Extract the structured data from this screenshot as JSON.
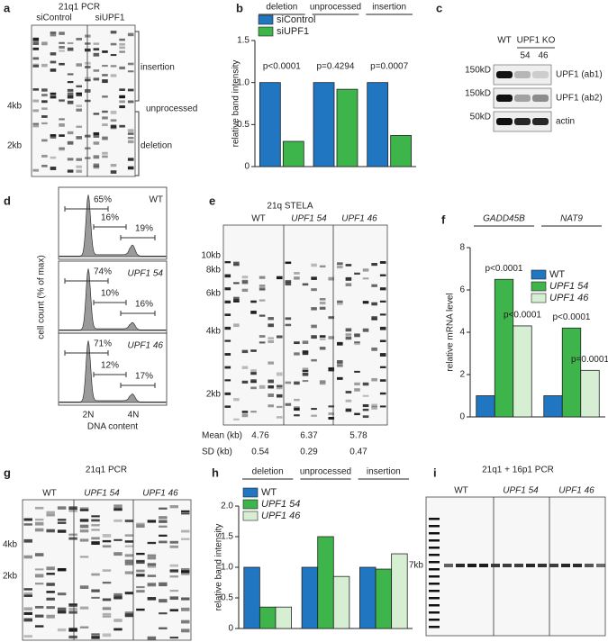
{
  "panels": {
    "a": {
      "letter": "a",
      "title": "21q1 PCR",
      "lanes": [
        "siControl",
        "siUPF1"
      ],
      "regions": [
        "insertion",
        "unprocessed",
        "deletion"
      ],
      "size_markers": [
        "4kb",
        "2kb"
      ]
    },
    "c": {
      "letter": "c",
      "lanes": [
        "WT",
        "UPF1 KO"
      ],
      "clones": [
        "54",
        "46"
      ],
      "size_markers": [
        "150kD",
        "150kD",
        "50kD"
      ],
      "antibodies": [
        "UPF1 (ab1)",
        "UPF1 (ab2)",
        "actin"
      ]
    },
    "d": {
      "letter": "d",
      "y_label": "cell count (% of max)",
      "x_label": "DNA content",
      "x_ticks": [
        "2N",
        "4N"
      ],
      "samples": [
        {
          "name": "WT",
          "percentages": [
            "65%",
            "16%",
            "19%"
          ]
        },
        {
          "name": "UPF1 54",
          "percentages": [
            "74%",
            "10%",
            "16%"
          ]
        },
        {
          "name": "UPF1 46",
          "percentages": [
            "71%",
            "12%",
            "17%"
          ]
        }
      ]
    },
    "e": {
      "letter": "e",
      "title": "21q STELA",
      "lanes": [
        "WT",
        "UPF1 54",
        "UPF1 46"
      ],
      "size_markers": [
        "10kb",
        "8kb",
        "6kb",
        "4kb",
        "2kb"
      ],
      "mean_label": "Mean (kb)",
      "sd_label": "SD (kb)",
      "means": [
        4.76,
        6.37,
        5.78
      ],
      "sds": [
        0.54,
        0.29,
        0.47
      ]
    },
    "g": {
      "letter": "g",
      "title": "21q1 PCR",
      "lanes": [
        "WT",
        "UPF1 54",
        "UPF1 46"
      ],
      "size_markers": [
        "4kb",
        "2kb"
      ]
    },
    "i": {
      "letter": "i",
      "title": "21q1 + 16p1 PCR",
      "lanes": [
        "WT",
        "UPF1 54",
        "UPF1 46"
      ],
      "size_markers": [
        "7kb"
      ]
    }
  },
  "chart_data": [
    {
      "type": "bar",
      "label": "b",
      "y_label": "relative band intensity",
      "categories": [
        "deletion",
        "unprocessed",
        "insertion"
      ],
      "series": [
        {
          "name": "siControl",
          "color": "#2176c1",
          "values": [
            1,
            1,
            1
          ]
        },
        {
          "name": "siUPF1",
          "color": "#3db54a",
          "values": [
            0.3,
            0.92,
            0.37
          ],
          "p_labels": [
            "p<0.0001",
            "p=0.4294",
            "p=0.0007"
          ]
        }
      ],
      "ylim": [
        0,
        1.5
      ],
      "yticks": [
        0,
        0.5,
        {
          "value": 1,
          "label": "1.0"
        },
        1.5
      ]
    },
    {
      "type": "bar",
      "label": "f",
      "y_label": "relative mRNA level",
      "categories": [
        "GADD45B",
        "NAT9"
      ],
      "category_style": "italic",
      "series": [
        {
          "name": "WT",
          "color": "#2176c1",
          "values": [
            1,
            1
          ]
        },
        {
          "name": "UPF1 54",
          "color": "#3db54a",
          "values": [
            6.5,
            4.2
          ],
          "p_labels": [
            "p<0.0001",
            "p<0.0001"
          ]
        },
        {
          "name": "UPF1 46",
          "color": "#d6efd3",
          "values": [
            4.3,
            2.2
          ],
          "p_labels": [
            "p<0.0001",
            "p=0.0001"
          ]
        }
      ],
      "ylim": [
        0,
        8
      ],
      "yticks": [
        0,
        2,
        4,
        6,
        8
      ]
    },
    {
      "type": "bar",
      "label": "h",
      "y_label": "relative band intensity",
      "categories": [
        "deletion",
        "unprocessed",
        "insertion"
      ],
      "series": [
        {
          "name": "WT",
          "color": "#2176c1",
          "values": [
            1,
            1,
            1
          ]
        },
        {
          "name": "UPF1 54",
          "color": "#3db54a",
          "values": [
            0.35,
            1.5,
            0.97
          ]
        },
        {
          "name": "UPF1 46",
          "color": "#d6efd3",
          "values": [
            0.35,
            0.85,
            1.22
          ]
        }
      ],
      "ylim": [
        0,
        2
      ],
      "yticks": [
        0,
        0.5,
        {
          "value": 1,
          "label": "1.0"
        },
        1.5,
        {
          "value": 2,
          "label": "2.0"
        }
      ]
    }
  ]
}
